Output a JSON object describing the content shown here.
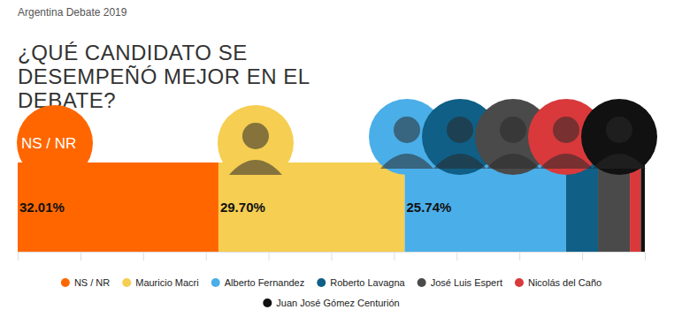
{
  "chart_data": {
    "type": "bar",
    "orientation": "horizontal",
    "stacked": true,
    "data_labels": true,
    "tick_labels": false,
    "legend": "bottom",
    "subtitle": "Argentina Debate 2019",
    "title": "¿QUÉ CANDIDATO SE DESEMPEÑÓ MEJOR EN EL DEBATE?",
    "categories": [
      null
    ],
    "xlim": [
      0,
      100
    ],
    "xticks": [
      0,
      10,
      20,
      30,
      40,
      50,
      60,
      70,
      80,
      90,
      100
    ],
    "series": [
      {
        "name": "NS / NR",
        "color": "#ff6600",
        "values": [
          32.01
        ],
        "value_labels": [
          "32.01%"
        ]
      },
      {
        "name": "Mauricio Macri",
        "color": "#f5ce52",
        "values": [
          29.7
        ],
        "value_labels": [
          "29.70%"
        ]
      },
      {
        "name": "Alberto Fernandez",
        "color": "#4aaee8",
        "values": [
          25.74
        ],
        "value_labels": [
          "25.74%"
        ]
      },
      {
        "name": "Roberto Lavagna",
        "color": "#0f5f86",
        "values": [
          5.08
        ],
        "value_labels": [
          null
        ]
      },
      {
        "name": "José Luis Espert",
        "color": "#4a4a4a",
        "values": [
          5.08
        ],
        "value_labels": [
          null
        ]
      },
      {
        "name": "Nicolás del Caño",
        "color": "#d9393b",
        "values": [
          1.75
        ],
        "value_labels": [
          null
        ]
      },
      {
        "name": "Juan José Gómez Centurión",
        "color": "#111111",
        "values": [
          0.64
        ],
        "value_labels": [
          null
        ]
      }
    ]
  }
}
